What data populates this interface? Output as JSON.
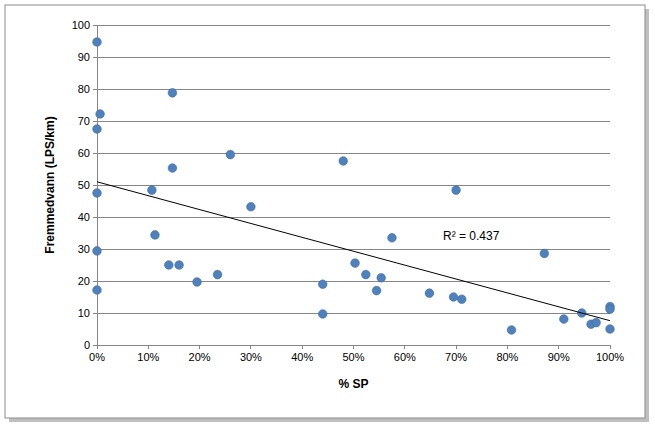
{
  "chart_data": {
    "type": "scatter",
    "x_label": "% SP",
    "y_label": "Fremmedvann (LPS/km)",
    "annotations": [
      "R² = 0.437"
    ],
    "xlim": [
      0,
      100
    ],
    "xticks": [
      {
        "value": 0,
        "label": "0%"
      },
      {
        "value": 10,
        "label": "10%"
      },
      {
        "value": 20,
        "label": "20%"
      },
      {
        "value": 30,
        "label": "30%"
      },
      {
        "value": 40,
        "label": "40%"
      },
      {
        "value": 50,
        "label": "50%"
      },
      {
        "value": 60,
        "label": "60%"
      },
      {
        "value": 70,
        "label": "70%"
      },
      {
        "value": 80,
        "label": "80%"
      },
      {
        "value": 90,
        "label": "90%"
      },
      {
        "value": 100,
        "label": "100%"
      }
    ],
    "ylim": [
      0,
      100
    ],
    "yticks": [
      0,
      10,
      20,
      30,
      40,
      50,
      60,
      70,
      80,
      90,
      100
    ],
    "grid": true,
    "series": [
      {
        "type": "scatter",
        "color": "#4f81bd",
        "marker": "circle",
        "x": [
          0,
          0.6,
          0,
          0,
          0,
          0,
          14.7,
          14.7,
          10.7,
          11.3,
          14.0,
          16.0,
          19.5,
          23.5,
          26.0,
          30.0,
          44.0,
          44.0,
          48.0,
          50.3,
          52.4,
          54.5,
          55.4,
          57.5,
          64.8,
          69.5,
          70.0,
          71.1,
          80.8,
          87.2,
          91.0,
          94.5,
          96.3,
          97.3,
          100,
          100,
          100
        ],
        "values": [
          94.7,
          72.2,
          67.5,
          47.5,
          29.4,
          17.2,
          78.8,
          55.3,
          48.4,
          34.4,
          25.0,
          25.0,
          19.7,
          22.0,
          59.5,
          43.2,
          19.0,
          9.7,
          57.5,
          25.6,
          22.0,
          17.0,
          21.0,
          33.5,
          16.2,
          15.0,
          48.4,
          14.3,
          4.7,
          28.6,
          8.1,
          10.0,
          6.5,
          7.0,
          12.0,
          11.2,
          5.0
        ]
      },
      {
        "type": "line",
        "color": "#000000",
        "line_style": "solid",
        "x": [
          0,
          100
        ],
        "values": [
          51.0,
          7.6
        ]
      }
    ]
  }
}
